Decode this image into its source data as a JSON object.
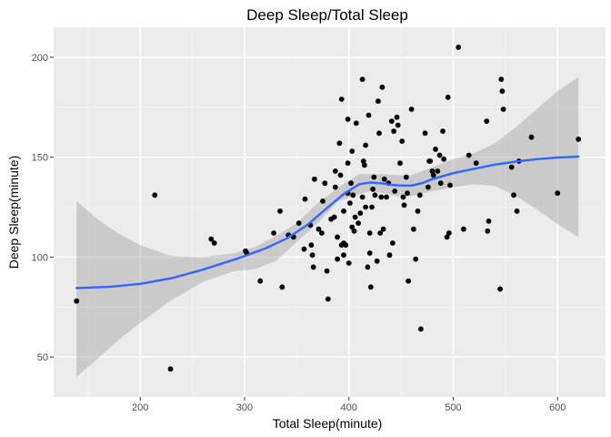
{
  "chart_data": {
    "type": "scatter",
    "title": "Deep Sleep/Total Sleep",
    "xlabel": "Total Sleep(minute)",
    "ylabel": "Deep Sleep(minute)",
    "xlim": [
      117,
      646
    ],
    "ylim": [
      30,
      215
    ],
    "x_ticks": [
      200,
      300,
      400,
      500,
      600
    ],
    "y_ticks": [
      50,
      100,
      150,
      200
    ],
    "grid": true,
    "legend": "none",
    "colors": {
      "panel_bg": "#EBEBEB",
      "grid_major": "#FFFFFF",
      "point": "#000000",
      "smooth_line": "#3366FF",
      "ribbon": "#999999"
    },
    "points": [
      [
        139,
        78
      ],
      [
        214,
        131
      ],
      [
        229,
        44
      ],
      [
        268,
        109
      ],
      [
        271,
        107
      ],
      [
        301,
        103
      ],
      [
        302,
        102
      ],
      [
        315,
        88
      ],
      [
        328,
        112
      ],
      [
        334,
        123
      ],
      [
        336,
        85
      ],
      [
        342,
        111
      ],
      [
        347,
        110
      ],
      [
        352,
        117
      ],
      [
        357,
        104
      ],
      [
        358,
        129
      ],
      [
        363,
        116
      ],
      [
        364,
        106
      ],
      [
        365,
        101
      ],
      [
        366,
        95
      ],
      [
        367,
        139
      ],
      [
        371,
        114
      ],
      [
        374,
        112
      ],
      [
        375,
        128
      ],
      [
        377,
        137
      ],
      [
        379,
        93
      ],
      [
        380,
        79
      ],
      [
        383,
        119
      ],
      [
        386,
        120
      ],
      [
        387,
        135
      ],
      [
        387,
        143
      ],
      [
        389,
        99
      ],
      [
        389,
        110
      ],
      [
        391,
        157
      ],
      [
        392,
        141
      ],
      [
        393,
        179
      ],
      [
        393,
        106
      ],
      [
        395,
        101
      ],
      [
        395,
        107
      ],
      [
        395,
        123
      ],
      [
        397,
        106
      ],
      [
        399,
        132
      ],
      [
        399,
        147
      ],
      [
        399,
        169
      ],
      [
        400,
        97
      ],
      [
        401,
        127
      ],
      [
        402,
        137
      ],
      [
        403,
        153
      ],
      [
        403,
        115
      ],
      [
        404,
        131
      ],
      [
        405,
        113
      ],
      [
        406,
        120
      ],
      [
        407,
        167
      ],
      [
        409,
        117
      ],
      [
        411,
        122
      ],
      [
        413,
        189
      ],
      [
        413,
        130
      ],
      [
        414,
        148
      ],
      [
        415,
        146
      ],
      [
        416,
        156
      ],
      [
        416,
        125
      ],
      [
        418,
        95
      ],
      [
        419,
        171
      ],
      [
        420,
        102
      ],
      [
        420,
        112
      ],
      [
        421,
        85
      ],
      [
        422,
        125
      ],
      [
        423,
        134
      ],
      [
        424,
        140
      ],
      [
        425,
        131
      ],
      [
        427,
        98
      ],
      [
        428,
        178
      ],
      [
        429,
        162
      ],
      [
        430,
        112
      ],
      [
        431,
        130
      ],
      [
        432,
        185
      ],
      [
        433,
        114
      ],
      [
        434,
        139
      ],
      [
        436,
        130
      ],
      [
        438,
        137
      ],
      [
        439,
        101
      ],
      [
        441,
        168
      ],
      [
        442,
        107
      ],
      [
        443,
        163
      ],
      [
        444,
        133
      ],
      [
        446,
        170
      ],
      [
        447,
        166
      ],
      [
        449,
        147
      ],
      [
        451,
        158
      ],
      [
        452,
        130
      ],
      [
        453,
        126
      ],
      [
        455,
        140
      ],
      [
        456,
        132
      ],
      [
        457,
        88
      ],
      [
        460,
        174
      ],
      [
        462,
        114
      ],
      [
        464,
        99
      ],
      [
        466,
        123
      ],
      [
        468,
        131
      ],
      [
        469,
        64
      ],
      [
        473,
        162
      ],
      [
        476,
        135
      ],
      [
        477,
        148
      ],
      [
        478,
        148
      ],
      [
        480,
        143
      ],
      [
        481,
        141
      ],
      [
        483,
        154
      ],
      [
        485,
        143
      ],
      [
        487,
        151
      ],
      [
        488,
        137
      ],
      [
        490,
        163
      ],
      [
        491,
        149
      ],
      [
        494,
        110
      ],
      [
        495,
        180
      ],
      [
        496,
        112
      ],
      [
        497,
        136
      ],
      [
        505,
        205
      ],
      [
        510,
        114
      ],
      [
        515,
        151
      ],
      [
        522,
        147
      ],
      [
        532,
        168
      ],
      [
        533,
        113
      ],
      [
        534,
        118
      ],
      [
        545,
        84
      ],
      [
        546,
        189
      ],
      [
        547,
        183
      ],
      [
        548,
        174
      ],
      [
        556,
        145
      ],
      [
        558,
        131
      ],
      [
        561,
        123
      ],
      [
        563,
        148
      ],
      [
        575,
        160
      ],
      [
        600,
        132
      ],
      [
        620,
        159
      ]
    ],
    "smooth_fit": {
      "method": "loess",
      "line": [
        [
          139,
          84.5
        ],
        [
          170,
          85.1
        ],
        [
          200,
          86.6
        ],
        [
          230,
          89.4
        ],
        [
          260,
          93.7
        ],
        [
          290,
          98.7
        ],
        [
          300,
          100.5
        ],
        [
          320,
          104.3
        ],
        [
          340,
          109.2
        ],
        [
          360,
          116
        ],
        [
          380,
          125
        ],
        [
          395,
          131.5
        ],
        [
          410,
          136.5
        ],
        [
          420,
          137.3
        ],
        [
          430,
          137
        ],
        [
          440,
          136.2
        ],
        [
          450,
          135.8
        ],
        [
          460,
          135.8
        ],
        [
          470,
          137
        ],
        [
          480,
          139
        ],
        [
          500,
          142
        ],
        [
          520,
          144.2
        ],
        [
          540,
          146.3
        ],
        [
          560,
          147.8
        ],
        [
          580,
          149
        ],
        [
          600,
          149.8
        ],
        [
          620,
          150.3
        ]
      ],
      "ribbon_upper": [
        [
          139,
          128
        ],
        [
          160,
          118.5
        ],
        [
          180,
          111.5
        ],
        [
          200,
          106
        ],
        [
          230,
          100.5
        ],
        [
          260,
          100
        ],
        [
          290,
          102
        ],
        [
          310,
          105
        ],
        [
          330,
          110.5
        ],
        [
          350,
          117
        ],
        [
          370,
          127
        ],
        [
          390,
          135
        ],
        [
          410,
          141.5
        ],
        [
          420,
          141.5
        ],
        [
          435,
          141.5
        ],
        [
          445,
          141
        ],
        [
          460,
          141
        ],
        [
          480,
          145
        ],
        [
          500,
          149
        ],
        [
          520,
          152
        ],
        [
          540,
          157
        ],
        [
          560,
          165
        ],
        [
          580,
          174
        ],
        [
          600,
          183
        ],
        [
          620,
          190
        ]
      ],
      "ribbon_lower": [
        [
          620,
          110
        ],
        [
          600,
          116.5
        ],
        [
          580,
          124
        ],
        [
          560,
          130.5
        ],
        [
          540,
          135.6
        ],
        [
          520,
          136.4
        ],
        [
          500,
          135
        ],
        [
          480,
          133
        ],
        [
          460,
          130.5
        ],
        [
          445,
          130.5
        ],
        [
          435,
          132
        ],
        [
          420,
          133
        ],
        [
          410,
          131.5
        ],
        [
          390,
          128
        ],
        [
          370,
          117
        ],
        [
          350,
          107.5
        ],
        [
          330,
          98
        ],
        [
          310,
          94
        ],
        [
          290,
          93
        ],
        [
          260,
          87.5
        ],
        [
          230,
          78.5
        ],
        [
          200,
          67
        ],
        [
          180,
          59
        ],
        [
          160,
          49.5
        ],
        [
          139,
          40
        ]
      ]
    }
  }
}
